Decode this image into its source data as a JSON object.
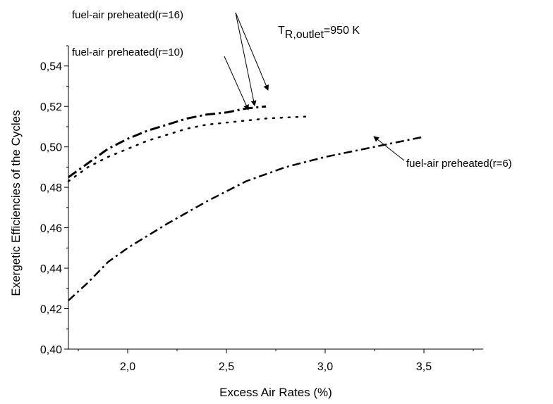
{
  "chart_data": {
    "type": "line",
    "xlabel": "Excess Air Rates (%)",
    "ylabel": "Exergetic Efficiencies of the Cycles",
    "xlim": [
      1.7,
      3.8
    ],
    "ylim": [
      0.4,
      0.55
    ],
    "xticks": [
      2.0,
      2.5,
      3.0,
      3.5
    ],
    "xtick_labels": [
      "2,0",
      "2,5",
      "3,0",
      "3,5"
    ],
    "yticks": [
      0.4,
      0.42,
      0.44,
      0.46,
      0.48,
      0.5,
      0.52,
      0.54
    ],
    "ytick_labels": [
      "0,40",
      "0,42",
      "0,44",
      "0,46",
      "0,48",
      "0,50",
      "0,52",
      "0,54"
    ],
    "grid": false,
    "condition": {
      "prefix": "T",
      "subscript": "R,outlet",
      "suffix": "=950 K"
    },
    "series": [
      {
        "name": "fuel-air preheated(r=16)",
        "style": "dash-dot-thick",
        "x": [
          1.7,
          1.8,
          1.9,
          2.0,
          2.1,
          2.2,
          2.3,
          2.4,
          2.5,
          2.6,
          2.7
        ],
        "y": [
          0.485,
          0.492,
          0.499,
          0.504,
          0.508,
          0.511,
          0.514,
          0.516,
          0.517,
          0.519,
          0.52
        ]
      },
      {
        "name": "fuel-air preheated(r=10)",
        "style": "dotted",
        "x": [
          1.7,
          1.8,
          1.9,
          2.0,
          2.1,
          2.2,
          2.3,
          2.4,
          2.5,
          2.6,
          2.7,
          2.8,
          2.9
        ],
        "y": [
          0.483,
          0.49,
          0.495,
          0.499,
          0.503,
          0.506,
          0.509,
          0.511,
          0.512,
          0.513,
          0.514,
          0.5145,
          0.515
        ]
      },
      {
        "name": "fuel-air preheated(r=6)",
        "style": "dash-dot",
        "x": [
          1.7,
          1.8,
          1.9,
          2.0,
          2.2,
          2.4,
          2.6,
          2.8,
          3.0,
          3.2,
          3.5
        ],
        "y": [
          0.424,
          0.433,
          0.443,
          0.45,
          0.462,
          0.473,
          0.483,
          0.49,
          0.495,
          0.499,
          0.505
        ]
      }
    ]
  }
}
